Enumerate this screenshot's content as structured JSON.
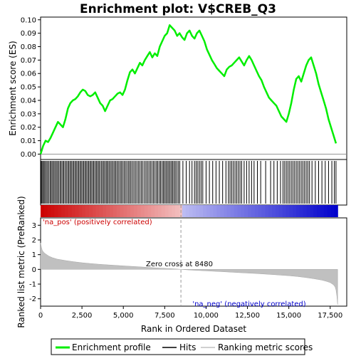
{
  "chart_data": {
    "type": "line",
    "title": "Enrichment plot: V$CREB_Q3",
    "panels": {
      "enrichment": {
        "ylabel": "Enrichment score (ES)",
        "ylim": [
          -0.004,
          0.102
        ],
        "yticks": [
          0.0,
          0.01,
          0.02,
          0.03,
          0.04,
          0.05,
          0.06,
          0.07,
          0.08,
          0.09,
          0.1
        ],
        "ytick_labels": [
          "0.00",
          "0.01",
          "0.02",
          "0.03",
          "0.04",
          "0.05",
          "0.06",
          "0.07",
          "0.08",
          "0.09",
          "0.10"
        ],
        "series": [
          {
            "name": "Enrichment profile",
            "color": "#00ee00",
            "x": [
              0,
              150,
              300,
              450,
              600,
              750,
              900,
              1050,
              1200,
              1350,
              1500,
              1650,
              1800,
              1950,
              2100,
              2250,
              2400,
              2550,
              2700,
              2850,
              3000,
              3150,
              3300,
              3450,
              3600,
              3750,
              3900,
              4050,
              4200,
              4350,
              4500,
              4650,
              4800,
              4950,
              5100,
              5250,
              5400,
              5550,
              5700,
              5850,
              6000,
              6150,
              6300,
              6450,
              6600,
              6750,
              6900,
              7050,
              7200,
              7350,
              7500,
              7650,
              7800,
              7950,
              8100,
              8250,
              8400,
              8550,
              8700,
              8850,
              9000,
              9150,
              9300,
              9450,
              9600,
              9750,
              9900,
              10050,
              10200,
              10350,
              10500,
              10650,
              10800,
              10950,
              11100,
              11250,
              11400,
              11550,
              11700,
              11850,
              12000,
              12150,
              12300,
              12450,
              12600,
              12750,
              12900,
              13050,
              13200,
              13350,
              13500,
              13650,
              13800,
              13950,
              14100,
              14250,
              14400,
              14550,
              14700,
              14850,
              15000,
              15150,
              15300,
              15450,
              15600,
              15750,
              15900,
              16050,
              16200,
              16350,
              16500,
              16650,
              16800,
              16950,
              17100,
              17250,
              17400,
              17550,
              17700,
              17850
            ],
            "y": [
              0.0,
              0.006,
              0.01,
              0.009,
              0.012,
              0.016,
              0.02,
              0.024,
              0.022,
              0.02,
              0.026,
              0.034,
              0.038,
              0.04,
              0.041,
              0.043,
              0.046,
              0.048,
              0.047,
              0.044,
              0.043,
              0.044,
              0.046,
              0.042,
              0.038,
              0.036,
              0.032,
              0.036,
              0.04,
              0.041,
              0.043,
              0.045,
              0.046,
              0.044,
              0.048,
              0.055,
              0.061,
              0.063,
              0.06,
              0.064,
              0.068,
              0.066,
              0.07,
              0.073,
              0.076,
              0.072,
              0.075,
              0.073,
              0.08,
              0.084,
              0.088,
              0.09,
              0.096,
              0.094,
              0.092,
              0.088,
              0.09,
              0.087,
              0.085,
              0.09,
              0.092,
              0.088,
              0.086,
              0.09,
              0.092,
              0.088,
              0.084,
              0.078,
              0.074,
              0.07,
              0.067,
              0.064,
              0.062,
              0.06,
              0.058,
              0.063,
              0.065,
              0.066,
              0.068,
              0.07,
              0.072,
              0.069,
              0.066,
              0.07,
              0.073,
              0.07,
              0.066,
              0.062,
              0.058,
              0.055,
              0.05,
              0.046,
              0.042,
              0.04,
              0.038,
              0.036,
              0.032,
              0.028,
              0.026,
              0.024,
              0.03,
              0.038,
              0.048,
              0.056,
              0.058,
              0.054,
              0.06,
              0.066,
              0.07,
              0.072,
              0.066,
              0.06,
              0.052,
              0.046,
              0.04,
              0.034,
              0.026,
              0.02,
              0.014,
              0.008
            ]
          }
        ],
        "hits": [
          30,
          80,
          140,
          210,
          270,
          350,
          420,
          500,
          580,
          650,
          720,
          800,
          870,
          950,
          1020,
          1100,
          1180,
          1250,
          1330,
          1400,
          1480,
          1560,
          1640,
          1710,
          1790,
          1860,
          1940,
          2010,
          2090,
          2160,
          2240,
          2310,
          2390,
          2460,
          2540,
          2610,
          2690,
          2760,
          2840,
          2910,
          2990,
          3060,
          3140,
          3210,
          3290,
          3370,
          3440,
          3520,
          3590,
          3680,
          3760,
          3830,
          3910,
          3990,
          4060,
          4140,
          4220,
          4300,
          4380,
          4460,
          4540,
          4620,
          4700,
          4790,
          4870,
          4950,
          5040,
          5120,
          5210,
          5300,
          5380,
          5460,
          5550,
          5640,
          5730,
          5820,
          5910,
          6000,
          6090,
          6180,
          6280,
          6370,
          6460,
          6550,
          6640,
          6730,
          6820,
          6910,
          7000,
          7080,
          7170,
          7250,
          7340,
          7420,
          7500,
          7580,
          7660,
          7740,
          7820,
          7900,
          7980,
          8060,
          8140,
          8230,
          8320,
          8410,
          8600,
          8800,
          9000,
          9150,
          9300,
          9400,
          9500,
          9600,
          9700,
          9800,
          10000,
          10200,
          10400,
          10600,
          10800,
          11000,
          11200,
          11350,
          11450,
          11550,
          11650,
          11750,
          11850,
          11950,
          12050,
          12150,
          12300,
          12450,
          12600,
          12750,
          12900,
          13100,
          13300,
          13600,
          13900,
          14100,
          14300,
          14500,
          14650,
          14750,
          14850,
          14950,
          15050,
          15150,
          15250,
          15350,
          15450,
          15550,
          15650,
          15750,
          15850,
          15950,
          16050,
          16150,
          16250,
          16400,
          16600,
          16800,
          17000,
          17200,
          17400,
          17600,
          17750,
          17850
        ]
      },
      "ranked": {
        "ylabel": "Ranked list metric (PreRanked)",
        "xlabel": "Rank in Ordered Dataset",
        "ylim": [
          -2.5,
          3.5
        ],
        "yticks": [
          -2,
          -1,
          0,
          1,
          2,
          3
        ],
        "ytick_labels": [
          "-2",
          "-1",
          "0",
          "1",
          "2",
          "3"
        ],
        "xlim": [
          0,
          18500
        ],
        "xticks": [
          0,
          2500,
          5000,
          7500,
          10000,
          12500,
          15000,
          17500
        ],
        "xtick_labels": [
          "0",
          "2,500",
          "5,000",
          "7,500",
          "10,000",
          "12,500",
          "15,000",
          "17,500"
        ],
        "series": [
          {
            "name": "Ranking metric scores",
            "color": "#c0c0c0",
            "x": [
              0,
              50,
              100,
              200,
              300,
              500,
              700,
              1000,
              1500,
              2000,
              2500,
              3000,
              3500,
              4000,
              5000,
              6000,
              7000,
              8000,
              8480,
              9000,
              10000,
              11000,
              12000,
              13000,
              14000,
              15000,
              15500,
              16000,
              16500,
              17000,
              17300,
              17500,
              17700,
              17800,
              17850,
              17900,
              17950
            ],
            "y": [
              1.8,
              1.5,
              1.3,
              1.15,
              1.05,
              0.9,
              0.8,
              0.7,
              0.6,
              0.52,
              0.45,
              0.4,
              0.35,
              0.31,
              0.24,
              0.17,
              0.1,
              0.04,
              0.0,
              -0.04,
              -0.1,
              -0.16,
              -0.22,
              -0.28,
              -0.35,
              -0.43,
              -0.48,
              -0.55,
              -0.63,
              -0.73,
              -0.82,
              -0.9,
              -1.05,
              -1.2,
              -1.4,
              -1.8,
              -2.4
            ]
          }
        ],
        "zero_cross_label": "Zero cross at 8480",
        "zero_cross": 8480,
        "pos_label": "'na_pos' (positively correlated)",
        "neg_label": "'na_neg' (negatively correlated)",
        "pos_color": "#cc0000",
        "neg_color": "#0000cc"
      }
    },
    "legend": [
      {
        "label": "Enrichment profile",
        "color": "#00ee00",
        "style": "thick-line"
      },
      {
        "label": "Hits",
        "color": "#000000",
        "style": "line"
      },
      {
        "label": "Ranking metric scores",
        "color": "#c0c0c0",
        "style": "line"
      }
    ],
    "legend_position": "bottom",
    "grid": false
  }
}
